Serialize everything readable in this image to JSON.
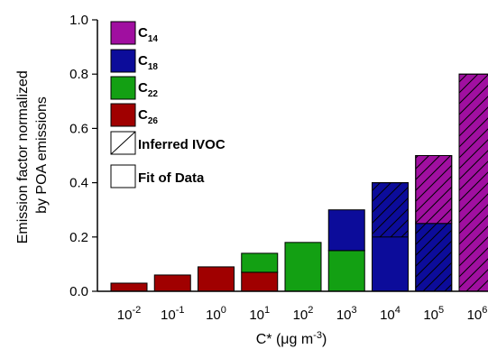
{
  "chart_data": {
    "type": "bar",
    "stacked": true,
    "categories": [
      "-2",
      "-1",
      "0",
      "1",
      "2",
      "3",
      "4",
      "5",
      "6"
    ],
    "tick_base": "10",
    "xlabel": {
      "prefix": "C* (μg m",
      "exp": "-3",
      "suffix": ")"
    },
    "ylabel_lines": [
      "Emission factor normalized",
      "by POA emissions"
    ],
    "ylim": [
      0,
      1.0
    ],
    "yticks": [
      "0.0",
      "0.2",
      "0.4",
      "0.6",
      "0.8",
      "1.0"
    ],
    "series": [
      {
        "name": "C",
        "sub": "26",
        "color": "#a00000",
        "values": [
          0.03,
          0.06,
          0.09,
          0.07,
          0,
          0,
          0,
          0,
          0
        ]
      },
      {
        "name": "C",
        "sub": "22",
        "color": "#13a013",
        "values": [
          0,
          0,
          0,
          0.07,
          0.18,
          0.15,
          0,
          0,
          0
        ]
      },
      {
        "name": "C",
        "sub": "18",
        "color": "#0c0c9a",
        "values": [
          0,
          0,
          0,
          0,
          0,
          0.15,
          0.4,
          0.25,
          0
        ]
      },
      {
        "name": "C",
        "sub": "14",
        "color": "#a00fa0",
        "values": [
          0,
          0,
          0,
          0,
          0,
          0,
          0,
          0.25,
          0.8
        ]
      }
    ],
    "hatched": [
      {
        "category": "4",
        "from": 0.2,
        "to": 0.4
      },
      {
        "category": "5",
        "from": 0,
        "to": 0.5
      },
      {
        "category": "6",
        "from": 0,
        "to": 0.8
      }
    ],
    "legend": {
      "placement": "top-left",
      "hatch_label": "Inferred IVOC",
      "fit_label": "Fit of Data"
    },
    "grid": false
  }
}
